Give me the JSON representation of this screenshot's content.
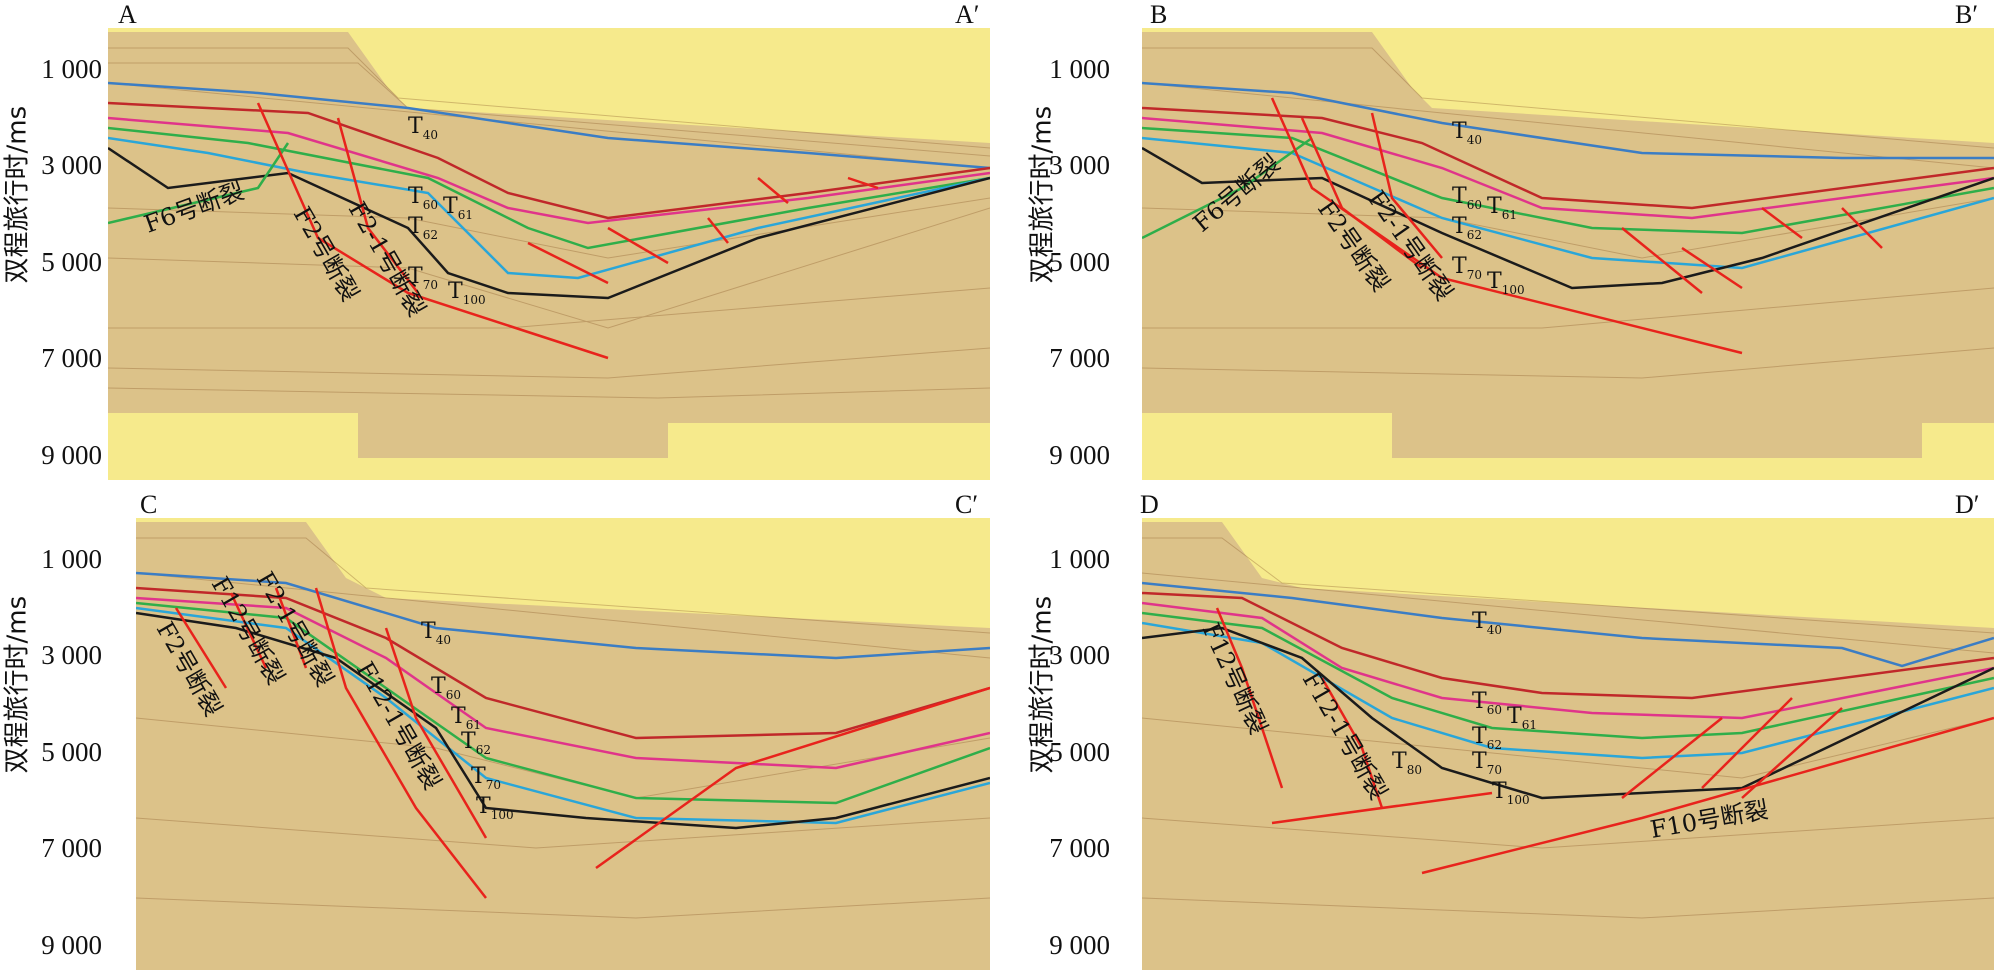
{
  "panels": [
    {
      "id": "A",
      "left_label": "A",
      "right_label": "A′",
      "ylabel": "双程旅行时/ms",
      "ticks": [
        "1 000",
        "3 000",
        "5 000",
        "7 000",
        "9 000"
      ],
      "horizons": [
        "T40",
        "T60",
        "T61",
        "T62",
        "T70",
        "T100"
      ],
      "horizon_labels": [
        {
          "main": "T",
          "sub": "40"
        },
        {
          "main": "T",
          "sub": "60"
        },
        {
          "main": "T",
          "sub": "61"
        },
        {
          "main": "T",
          "sub": "62"
        },
        {
          "main": "T",
          "sub": "70"
        },
        {
          "main": "T",
          "sub": "100"
        }
      ],
      "fault_labels": [
        "F6号断裂",
        "F2号断裂",
        "F2-1号断裂"
      ]
    },
    {
      "id": "B",
      "left_label": "B",
      "right_label": "B′",
      "ylabel": "双程旅行时/ms",
      "ticks": [
        "1 000",
        "3 000",
        "5 000",
        "7 000",
        "9 000"
      ],
      "horizon_labels": [
        {
          "main": "T",
          "sub": "40"
        },
        {
          "main": "T",
          "sub": "60"
        },
        {
          "main": "T",
          "sub": "61"
        },
        {
          "main": "T",
          "sub": "62"
        },
        {
          "main": "T",
          "sub": "70"
        },
        {
          "main": "T",
          "sub": "100"
        }
      ],
      "fault_labels": [
        "F6号断裂",
        "F2号断裂",
        "F2-1号断裂"
      ]
    },
    {
      "id": "C",
      "left_label": "C",
      "right_label": "C′",
      "ylabel": "双程旅行时/ms",
      "ticks": [
        "1 000",
        "3 000",
        "5 000",
        "7 000",
        "9 000"
      ],
      "horizon_labels": [
        {
          "main": "T",
          "sub": "40"
        },
        {
          "main": "T",
          "sub": "60"
        },
        {
          "main": "T",
          "sub": "61"
        },
        {
          "main": "T",
          "sub": "62"
        },
        {
          "main": "T",
          "sub": "70"
        },
        {
          "main": "T",
          "sub": "100"
        }
      ],
      "fault_labels": [
        "F2号断裂",
        "F12号断裂",
        "F2-1号断裂",
        "F12-1号断裂"
      ]
    },
    {
      "id": "D",
      "left_label": "D",
      "right_label": "D′",
      "ylabel": "双程旅行时/ms",
      "ticks": [
        "1 000",
        "3 000",
        "5 000",
        "7 000",
        "9 000"
      ],
      "horizon_labels": [
        {
          "main": "T",
          "sub": "40"
        },
        {
          "main": "T",
          "sub": "60"
        },
        {
          "main": "T",
          "sub": "61"
        },
        {
          "main": "T",
          "sub": "62"
        },
        {
          "main": "T",
          "sub": "70"
        },
        {
          "main": "T",
          "sub": "80"
        },
        {
          "main": "T",
          "sub": "100"
        }
      ],
      "fault_labels": [
        "F12号断裂",
        "F12-1号断裂",
        "F10号断裂"
      ]
    }
  ],
  "colors": {
    "background_yellow": "#f6ea8c",
    "seismic_base": "#e2c98c",
    "T40": "#3b7dc4",
    "T60": "#c0282a",
    "T61": "#e0348a",
    "T62": "#2fae4a",
    "T70": "#2aa6d8",
    "T100": "#1b1b1b",
    "fault": "#e8231c"
  }
}
